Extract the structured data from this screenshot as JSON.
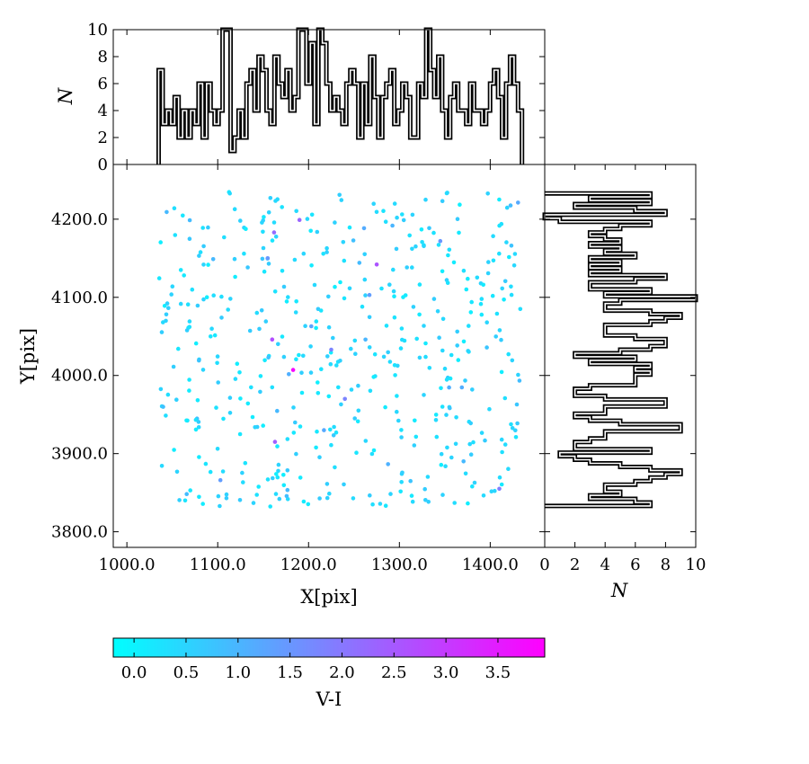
{
  "chart_data": [
    {
      "panel": "main-scatter",
      "type": "scatter",
      "xlabel": "X[pix]",
      "ylabel": "Y[pix]",
      "xlim": [
        985,
        1460
      ],
      "ylim": [
        3780,
        4270
      ],
      "x_ticks": [
        1000,
        1100,
        1200,
        1300,
        1400
      ],
      "x_tick_labels": [
        "1000.0",
        "1100.0",
        "1200.0",
        "1300.0",
        "1400.0"
      ],
      "y_ticks": [
        3800,
        3900,
        4000,
        4100,
        4200
      ],
      "y_tick_labels": [
        "3800.0",
        "3900.0",
        "4000.0",
        "4100.0",
        "4200.0"
      ],
      "color_by": "V-I",
      "color_range": [
        -0.2,
        3.95
      ],
      "points_note": "approximately 500 stars spread uniformly over X 1035-1435, Y 3830-4235; most have V-I between 0 and 1",
      "highlighted_points": [
        {
          "x": 1183,
          "y": 4007,
          "v_i": 3.8
        },
        {
          "x": 1275,
          "y": 4142,
          "v_i": 2.6
        },
        {
          "x": 1160,
          "y": 4046,
          "v_i": 2.7
        },
        {
          "x": 1163,
          "y": 3915,
          "v_i": 2.4
        },
        {
          "x": 1162,
          "y": 4183,
          "v_i": 2.2
        },
        {
          "x": 1190,
          "y": 4199,
          "v_i": 2.3
        },
        {
          "x": 1225,
          "y": 4033,
          "v_i": 1.8
        },
        {
          "x": 1240,
          "y": 3970,
          "v_i": 1.8
        },
        {
          "x": 1410,
          "y": 3855,
          "v_i": 1.9
        },
        {
          "x": 1345,
          "y": 4172,
          "v_i": 1.5
        },
        {
          "x": 1267,
          "y": 4103,
          "v_i": 1.4
        },
        {
          "x": 1203,
          "y": 4063,
          "v_i": 1.3
        },
        {
          "x": 1155,
          "y": 4150,
          "v_i": 1.5
        },
        {
          "x": 1103,
          "y": 3866,
          "v_i": 1.4
        },
        {
          "x": 1217,
          "y": 3930,
          "v_i": 1.2
        }
      ]
    },
    {
      "panel": "top-histogram",
      "type": "step",
      "ylabel": "N",
      "ylim": [
        0,
        10
      ],
      "y_ticks": [
        0,
        2,
        4,
        6,
        8,
        10
      ],
      "bin_edges_x": [
        1035,
        1435
      ],
      "counts": [
        7,
        3,
        4,
        3,
        5,
        2,
        4,
        2,
        4,
        3,
        6,
        2,
        6,
        4,
        3,
        4,
        10,
        10,
        1,
        2,
        4,
        2,
        6,
        7,
        4,
        8,
        7,
        4,
        3,
        8,
        6,
        5,
        7,
        4,
        5,
        10,
        10,
        6,
        9,
        3,
        10,
        9,
        6,
        4,
        5,
        4,
        3,
        6,
        7,
        6,
        2,
        6,
        3,
        8,
        5,
        2,
        5,
        6,
        7,
        3,
        4,
        6,
        5,
        2,
        2,
        6,
        5,
        10,
        7,
        5,
        8,
        4,
        2,
        5,
        6,
        4,
        4,
        3,
        6,
        4,
        4,
        3,
        4,
        6,
        7,
        5,
        2,
        6,
        8,
        6,
        4
      ],
      "counts_note": "approximate reconstruction of the marginal X histogram"
    },
    {
      "panel": "right-histogram",
      "type": "step",
      "xlabel": "N",
      "xlim": [
        0,
        10
      ],
      "x_ticks": [
        0,
        2,
        4,
        6,
        8,
        10
      ],
      "bin_edges_y": [
        3833,
        4233
      ],
      "counts": [
        7,
        6,
        3,
        5,
        4,
        4,
        6,
        7,
        8,
        9,
        7,
        5,
        3,
        2,
        1,
        7,
        2,
        2,
        3,
        4,
        4,
        9,
        9,
        5,
        3,
        2,
        4,
        4,
        8,
        8,
        4,
        2,
        2,
        3,
        6,
        6,
        6,
        7,
        6,
        7,
        3,
        6,
        2,
        5,
        7,
        8,
        8,
        6,
        4,
        4,
        4,
        7,
        8,
        9,
        7,
        4,
        4,
        5,
        10,
        4,
        7,
        3,
        3,
        6,
        8,
        3,
        5,
        3,
        5,
        3,
        6,
        4,
        5,
        3,
        5,
        4,
        3,
        4,
        5,
        7,
        1,
        0,
        8,
        6,
        2,
        7,
        3,
        7
      ],
      "counts_note": "approximate reconstruction of the marginal Y histogram, listed from bottom to top"
    },
    {
      "panel": "colorbar",
      "type": "colorbar",
      "label": "V-I",
      "range": [
        -0.2,
        3.95
      ],
      "ticks": [
        0.0,
        0.5,
        1.0,
        1.5,
        2.0,
        2.5,
        3.0,
        3.5
      ],
      "tick_labels": [
        "0.0",
        "0.5",
        "1.0",
        "1.5",
        "2.0",
        "2.5",
        "3.0",
        "3.5"
      ],
      "colormap": [
        "#00ffff",
        "#ff00ff"
      ]
    }
  ],
  "labels": {
    "x_axis": "X[pix]",
    "y_axis": "Y[pix]",
    "top_hist_y": "N",
    "right_hist_x": "N",
    "colorbar": "V-I"
  },
  "colors": {
    "low": "#00ffff",
    "high": "#ff00ff",
    "line": "#000000"
  }
}
